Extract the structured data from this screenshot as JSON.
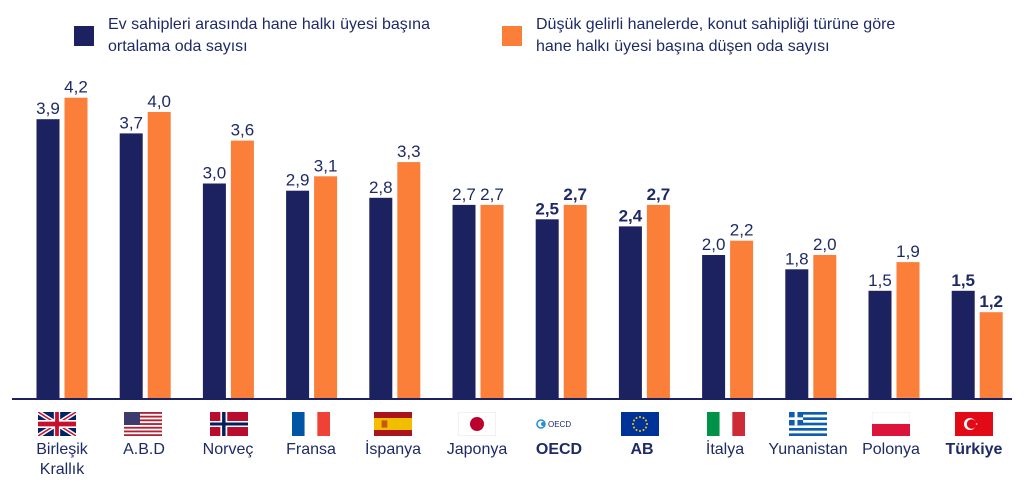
{
  "colors": {
    "series1": "#1c2260",
    "series2": "#fb7f38",
    "text": "#1e2a66",
    "axis": "#1c2260"
  },
  "chart_data": {
    "type": "bar",
    "title": "",
    "xlabel": "",
    "ylabel": "",
    "ylim": [
      0,
      4.4
    ],
    "grid": false,
    "legend_position": "top",
    "categories": [
      "Birleşik Krallık",
      "A.B.D",
      "Norveç",
      "Fransa",
      "İspanya",
      "Japonya",
      "OECD",
      "AB",
      "İtalya",
      "Yunanistan",
      "Polonya",
      "Türkiye"
    ],
    "bold_categories": [
      "OECD",
      "AB",
      "Türkiye"
    ],
    "series": [
      {
        "name": "Ev sahipleri arasında hane halkı üyesi başına ortalama oda sayısı",
        "values": [
          3.9,
          3.7,
          3.0,
          2.9,
          2.8,
          2.7,
          2.5,
          2.4,
          2.0,
          1.8,
          1.5,
          1.5
        ],
        "labels": [
          "3,9",
          "3,7",
          "3,0",
          "2,9",
          "2,8",
          "2,7",
          "2,5",
          "2,4",
          "2,0",
          "1,8",
          "1,5",
          "1,5"
        ]
      },
      {
        "name": "Düşük gelirli hanelerde, konut sahipliği türüne göre hane halkı üyesi başına düşen oda sayısı",
        "values": [
          4.2,
          4.0,
          3.6,
          3.1,
          3.3,
          2.7,
          2.7,
          2.7,
          2.2,
          2.0,
          1.9,
          1.2
        ],
        "labels": [
          "4,2",
          "4,0",
          "3,6",
          "3,1",
          "3,3",
          "2,7",
          "2,7",
          "2,7",
          "2,2",
          "2,0",
          "1,9",
          "1,2"
        ]
      }
    ]
  },
  "legend": {
    "series1_line1": "Ev sahipleri arasında hane halkı üyesi başına",
    "series1_line2": "ortalama oda sayısı",
    "series2_line1": "Düşük gelirli hanelerde, konut sahipliği türüne göre",
    "series2_line2": "hane halkı üyesi başına düşen oda sayısı"
  },
  "x_axis": {
    "labels": [
      {
        "line1": "Birleşik",
        "line2": "Krallık",
        "flag": "uk-flag-icon"
      },
      {
        "line1": "A.B.D",
        "line2": "",
        "flag": "usa-flag-icon"
      },
      {
        "line1": "Norveç",
        "line2": "",
        "flag": "norway-flag-icon"
      },
      {
        "line1": "Fransa",
        "line2": "",
        "flag": "france-flag-icon"
      },
      {
        "line1": "İspanya",
        "line2": "",
        "flag": "spain-flag-icon"
      },
      {
        "line1": "Japonya",
        "line2": "",
        "flag": "japan-flag-icon"
      },
      {
        "line1": "OECD",
        "line2": "",
        "flag": "oecd-logo-icon"
      },
      {
        "line1": "AB",
        "line2": "",
        "flag": "eu-flag-icon"
      },
      {
        "line1": "İtalya",
        "line2": "",
        "flag": "italy-flag-icon"
      },
      {
        "line1": "Yunanistan",
        "line2": "",
        "flag": "greece-flag-icon"
      },
      {
        "line1": "Polonya",
        "line2": "",
        "flag": "poland-flag-icon"
      },
      {
        "line1": "Türkiye",
        "line2": "",
        "flag": "turkey-flag-icon"
      }
    ]
  },
  "oecd_logo_text": "OECD"
}
